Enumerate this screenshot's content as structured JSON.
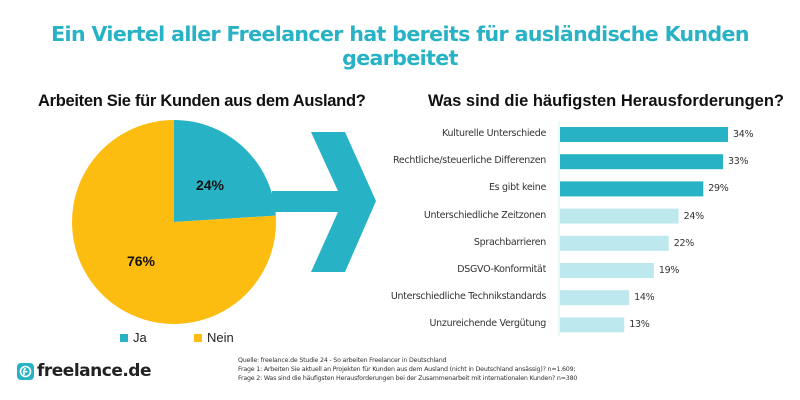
{
  "headline": "Ein Viertel aller Freelancer hat bereits für ausländische Kunden gearbeitet",
  "colors": {
    "teal": "#27b2c5",
    "light_teal": "#bde8ee",
    "yellow": "#fdbd10",
    "axis": "#d6eef2"
  },
  "logo": {
    "icon": "freelance-logo-icon",
    "text": "freelance.de"
  },
  "source": {
    "line1": "Quelle: freelance.de Studie 24 - So arbeiten Freelancer in Deutschland",
    "line2": "Frage 1: Arbeiten Sie aktuell an Projekten für Kunden aus dem Ausland (nicht in Deutschland ansässig)? n=1.609;",
    "line3": "Frage 2: Was sind die häufigsten Herausforderungen bei der Zusammenarbeit mit internationalen Kunden? n=380"
  },
  "arrow_icon": "chevron-arrow-right-icon",
  "chart_data": [
    {
      "type": "pie",
      "title": "Arbeiten Sie für Kunden aus dem Ausland?",
      "slices": [
        {
          "label": "Ja",
          "value": 24,
          "display": "24%",
          "color": "#27b2c5"
        },
        {
          "label": "Nein",
          "value": 76,
          "display": "76%",
          "color": "#fdbd10"
        }
      ],
      "legend": "bottom"
    },
    {
      "type": "bar",
      "orientation": "horizontal",
      "title": "Was sind die häufigsten Herausforderungen?",
      "categories": [
        "Kulturelle Unterschiede",
        "Rechtliche/steuerliche Differenzen",
        "Es gibt keine",
        "Unterschiedliche Zeitzonen",
        "Sprachbarrieren",
        "DSGVO-Konformität",
        "Unterschiedliche Technikstandards",
        "Unzureichende Vergütung"
      ],
      "values": [
        34,
        33,
        29,
        24,
        22,
        19,
        14,
        13
      ],
      "value_labels": [
        "34%",
        "33%",
        "29%",
        "24%",
        "22%",
        "19%",
        "14%",
        "13%"
      ],
      "highlighted": [
        true,
        true,
        true,
        false,
        false,
        false,
        false,
        false
      ],
      "unit": "%",
      "xlim": [
        0,
        34
      ]
    }
  ]
}
